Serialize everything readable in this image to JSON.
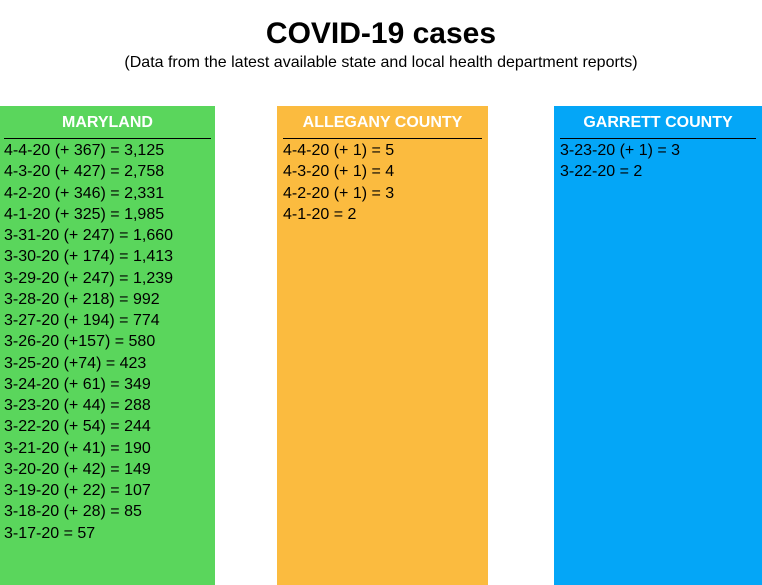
{
  "header": {
    "title": "COVID-19 cases",
    "subtitle": "(Data from the latest available state and local health department reports)"
  },
  "panels": [
    {
      "name": "MARYLAND",
      "color": "#5ad65c",
      "entries": [
        "4-4-20 (+ 367) = 3,125",
        "4-3-20 (+ 427) = 2,758",
        "4-2-20 (+ 346) = 2,331",
        "4-1-20 (+ 325) = 1,985",
        "3-31-20 (+ 247) = 1,660",
        "3-30-20 (+ 174) = 1,413",
        "3-29-20 (+ 247) = 1,239",
        "3-28-20 (+ 218) = 992",
        "3-27-20 (+ 194) = 774",
        "3-26-20 (+157) = 580",
        "3-25-20 (+74) = 423",
        "3-24-20 (+ 61) = 349",
        "3-23-20 (+ 44) = 288",
        "3-22-20 (+ 54) = 244",
        "3-21-20 (+ 41) = 190",
        "3-20-20 (+ 42) = 149",
        "3-19-20 (+ 22) = 107",
        "3-18-20 (+ 28) = 85",
        "3-17-20 = 57"
      ]
    },
    {
      "name": "ALLEGANY COUNTY",
      "color": "#fbbb3f",
      "entries": [
        "4-4-20 (+ 1) = 5",
        "4-3-20 (+ 1) = 4",
        "4-2-20 (+ 1) = 3",
        "4-1-20 = 2"
      ]
    },
    {
      "name": "GARRETT COUNTY",
      "color": "#04a6f7",
      "entries": [
        "3-23-20 (+ 1) = 3",
        "3-22-20 = 2"
      ]
    }
  ]
}
